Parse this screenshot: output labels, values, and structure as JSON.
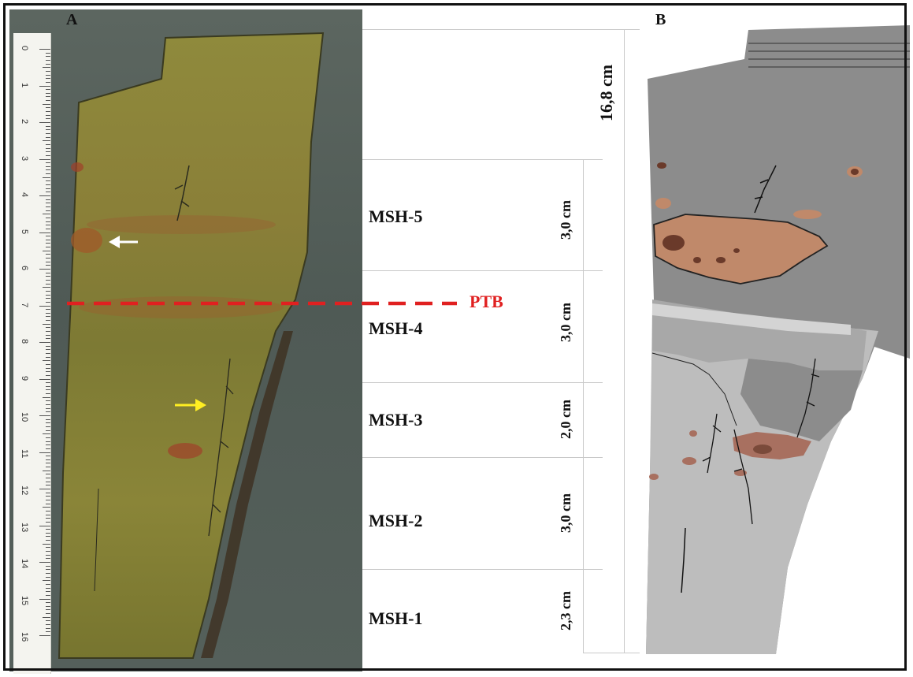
{
  "panel_a_label": "A",
  "panel_b_label": "B",
  "ruler_numbers": [
    "0",
    "1",
    "2",
    "3",
    "4",
    "5",
    "6",
    "7",
    "8",
    "9",
    "10",
    "11",
    "12",
    "13",
    "14",
    "15",
    "16"
  ],
  "total_thickness": "16,8 cm",
  "boundary_label": "PTB",
  "samples": [
    {
      "id": "MSH-5",
      "thickness": "3,0 cm"
    },
    {
      "id": "MSH-4",
      "thickness": "3,0 cm"
    },
    {
      "id": "MSH-3",
      "thickness": "2,0 cm"
    },
    {
      "id": "MSH-2",
      "thickness": "3,0 cm"
    },
    {
      "id": "MSH-1",
      "thickness": "2,3 cm"
    }
  ],
  "colors": {
    "boundary": "#e02020",
    "white_arrow": "#ffffff",
    "yellow_arrow": "#ffee22",
    "rock": "#8a8236",
    "sketch_dark": "#8c8c8c",
    "sketch_light": "#bdbdbd",
    "oxide": "#c0896a"
  }
}
